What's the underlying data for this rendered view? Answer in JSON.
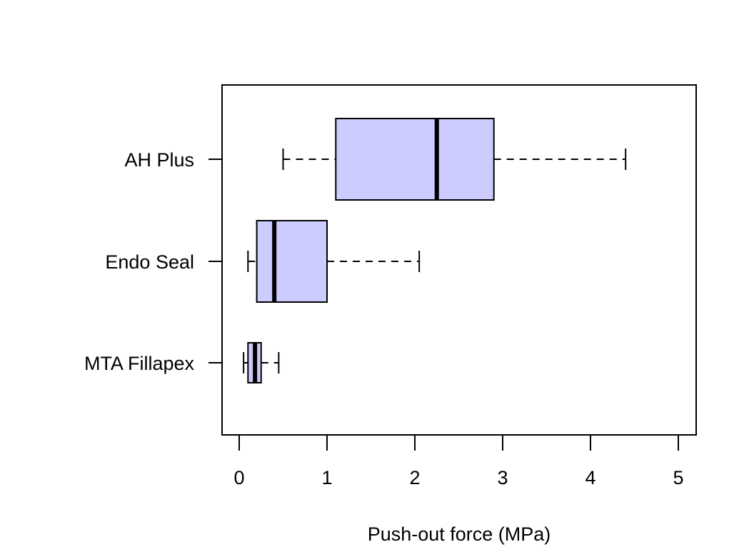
{
  "chart_data": {
    "type": "boxplot",
    "orientation": "horizontal",
    "title": "",
    "xlabel": "Push-out force (MPa)",
    "ylabel": "",
    "xlim": [
      -0.2,
      5.2
    ],
    "xticks": [
      0,
      1,
      2,
      3,
      4,
      5
    ],
    "xtick_labels": [
      "0",
      "1",
      "2",
      "3",
      "4",
      "5"
    ],
    "grid": false,
    "legend": "none",
    "box_fill": "#ccccff",
    "box_stroke": "#000000",
    "categories": [
      "AH Plus",
      "Endo Seal",
      "MTA Fillapex"
    ],
    "boxes": [
      {
        "name": "AH Plus",
        "min": 0.5,
        "q1": 1.1,
        "median": 2.25,
        "q3": 2.9,
        "max": 4.4
      },
      {
        "name": "Endo Seal",
        "min": 0.1,
        "q1": 0.2,
        "median": 0.4,
        "q3": 1.0,
        "max": 2.05
      },
      {
        "name": "MTA Fillapex",
        "min": 0.05,
        "q1": 0.1,
        "median": 0.18,
        "q3": 0.25,
        "max": 0.45
      }
    ]
  }
}
